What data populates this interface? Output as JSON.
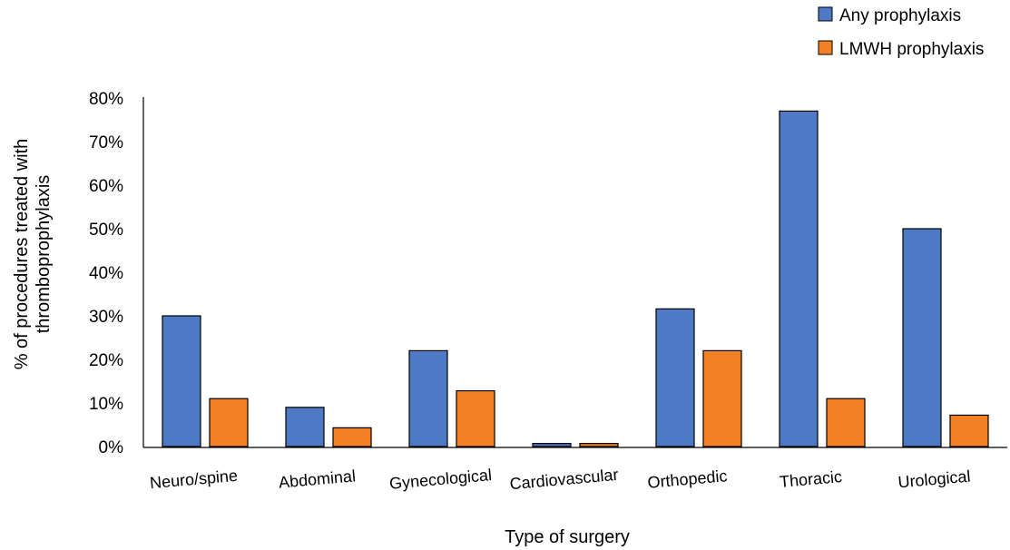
{
  "chart_data": {
    "type": "bar",
    "categories": [
      "Neuro/spine",
      "Abdominal",
      "Gynecological",
      "Cardiovascular",
      "Orthopedic",
      "Thoracic",
      "Urological"
    ],
    "series": [
      {
        "name": "Any prophylaxis",
        "color": "#4e79c4",
        "values": [
          30,
          9,
          22,
          0.7,
          31.6,
          77,
          50
        ]
      },
      {
        "name": "LMWH prophylaxis",
        "color": "#f28025",
        "values": [
          11,
          4.3,
          12.8,
          0.7,
          22,
          11,
          7.2
        ]
      }
    ],
    "xlabel": "Type of surgery",
    "ylabel_lines": [
      "% of procedures  treated with",
      "thromboprophylaxis"
    ],
    "ylim": [
      0,
      80
    ],
    "yticks": [
      0,
      10,
      20,
      30,
      40,
      50,
      60,
      70,
      80
    ],
    "ytick_format": "percent",
    "grid": false,
    "legend_position": "top-right"
  }
}
